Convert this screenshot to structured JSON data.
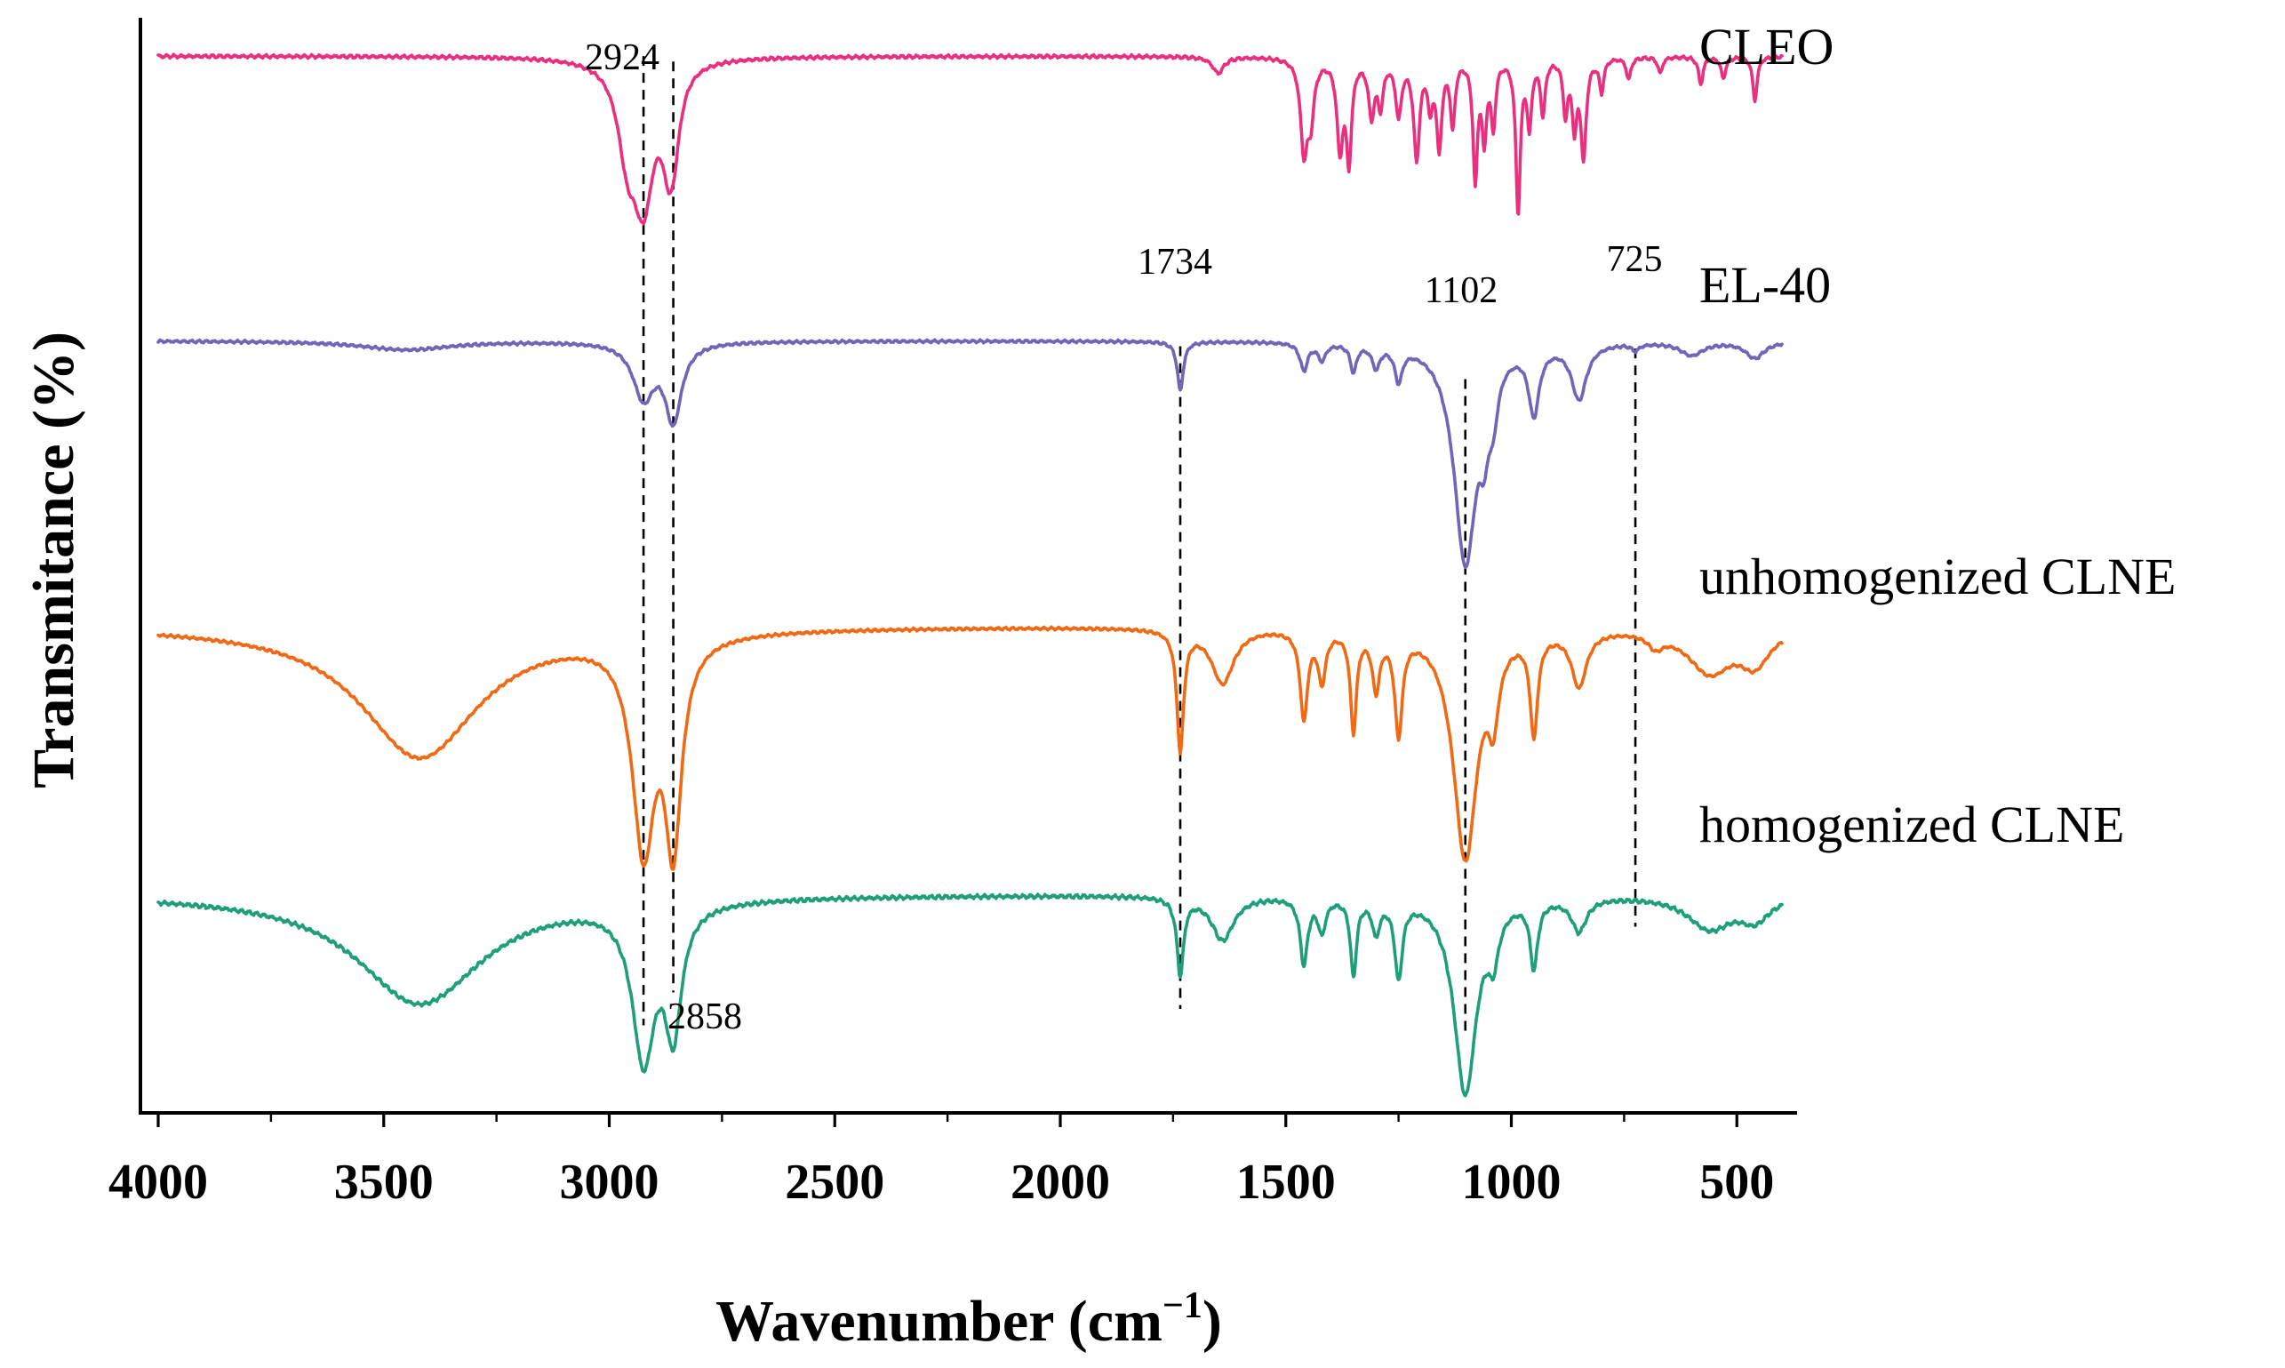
{
  "chart_data": {
    "type": "line",
    "title": "",
    "xlabel": "Wavenumber (cm",
    "xlabel_sup": "−1",
    "xlabel_close": ")",
    "ylabel": "Transmitance (%)",
    "xlim": [
      4000,
      400
    ],
    "x_reversed": true,
    "x_ticks": [
      "4000",
      "3500",
      "3000",
      "2500",
      "2000",
      "1500",
      "1000",
      "500"
    ],
    "x_tick_values": [
      4000,
      3500,
      3000,
      2500,
      2000,
      1500,
      1000,
      500
    ],
    "x_minor_step": 250,
    "y_ticks": [],
    "grid": false,
    "legend": "right",
    "series": [
      {
        "name": "CLEO",
        "color": "#E8307F",
        "baseline": 0.035,
        "slope": 0.0,
        "noise": 0.0018,
        "peaks": [
          [
            2960,
            0.07,
            25
          ],
          [
            2924,
            0.12,
            28
          ],
          [
            2870,
            0.05,
            18
          ],
          [
            2858,
            0.06,
            18
          ],
          [
            1650,
            0.015,
            15
          ],
          [
            1460,
            0.08,
            9
          ],
          [
            1445,
            0.05,
            9
          ],
          [
            1380,
            0.08,
            8
          ],
          [
            1360,
            0.09,
            7
          ],
          [
            1310,
            0.05,
            8
          ],
          [
            1290,
            0.04,
            7
          ],
          [
            1250,
            0.05,
            8
          ],
          [
            1210,
            0.09,
            8
          ],
          [
            1180,
            0.04,
            6
          ],
          [
            1160,
            0.08,
            7
          ],
          [
            1130,
            0.06,
            6
          ],
          [
            1080,
            0.11,
            6
          ],
          [
            1060,
            0.07,
            6
          ],
          [
            1040,
            0.06,
            6
          ],
          [
            985,
            0.14,
            6
          ],
          [
            960,
            0.06,
            6
          ],
          [
            930,
            0.05,
            6
          ],
          [
            880,
            0.05,
            6
          ],
          [
            860,
            0.06,
            6
          ],
          [
            840,
            0.09,
            7
          ],
          [
            800,
            0.03,
            6
          ],
          [
            740,
            0.02,
            6
          ],
          [
            670,
            0.015,
            6
          ],
          [
            580,
            0.025,
            6
          ],
          [
            530,
            0.02,
            6
          ],
          [
            460,
            0.04,
            6
          ]
        ]
      },
      {
        "name": "EL-40",
        "color": "#7464B8",
        "baseline": 0.295,
        "slope": 0.0,
        "noise": 0.0015,
        "peaks": [
          [
            3450,
            0.008,
            120
          ],
          [
            2924,
            0.05,
            28
          ],
          [
            2858,
            0.07,
            22
          ],
          [
            1734,
            0.045,
            8
          ],
          [
            1460,
            0.025,
            10
          ],
          [
            1420,
            0.015,
            10
          ],
          [
            1350,
            0.025,
            8
          ],
          [
            1300,
            0.02,
            10
          ],
          [
            1250,
            0.03,
            10
          ],
          [
            1102,
            0.2,
            30
          ],
          [
            1060,
            0.05,
            12
          ],
          [
            1040,
            0.04,
            12
          ],
          [
            950,
            0.06,
            14
          ],
          [
            850,
            0.05,
            20
          ],
          [
            725,
            0.006,
            10
          ],
          [
            600,
            0.012,
            30
          ],
          [
            460,
            0.015,
            25
          ]
        ]
      },
      {
        "name": "unhomogenized CLNE",
        "color": "#F06A16",
        "baseline": 0.555,
        "slope": 0.0,
        "noise": 0.0015,
        "peaks": [
          [
            3420,
            0.12,
            160
          ],
          [
            2924,
            0.19,
            30
          ],
          [
            2858,
            0.18,
            22
          ],
          [
            1734,
            0.11,
            9
          ],
          [
            1640,
            0.05,
            30
          ],
          [
            1460,
            0.08,
            10
          ],
          [
            1420,
            0.045,
            10
          ],
          [
            1350,
            0.09,
            8
          ],
          [
            1300,
            0.05,
            10
          ],
          [
            1250,
            0.09,
            10
          ],
          [
            1102,
            0.21,
            32
          ],
          [
            1040,
            0.06,
            14
          ],
          [
            950,
            0.09,
            10
          ],
          [
            850,
            0.05,
            20
          ],
          [
            680,
            0.012,
            20
          ],
          [
            560,
            0.04,
            60
          ],
          [
            460,
            0.03,
            40
          ]
        ]
      },
      {
        "name": "homogenized CLNE",
        "color": "#1E9E79",
        "baseline": 0.8,
        "slope": 0.0,
        "noise": 0.0022,
        "peaks": [
          [
            3420,
            0.1,
            170
          ],
          [
            2924,
            0.14,
            30
          ],
          [
            2858,
            0.11,
            22
          ],
          [
            1734,
            0.07,
            9
          ],
          [
            1640,
            0.04,
            30
          ],
          [
            1460,
            0.06,
            10
          ],
          [
            1420,
            0.03,
            10
          ],
          [
            1350,
            0.07,
            8
          ],
          [
            1300,
            0.03,
            10
          ],
          [
            1250,
            0.07,
            10
          ],
          [
            1102,
            0.18,
            30
          ],
          [
            1040,
            0.04,
            14
          ],
          [
            950,
            0.06,
            10
          ],
          [
            850,
            0.03,
            20
          ],
          [
            560,
            0.03,
            60
          ],
          [
            460,
            0.02,
            40
          ]
        ]
      }
    ],
    "annotations": [
      {
        "text": "2924",
        "wavenumber": 2924
      },
      {
        "text": "2858",
        "wavenumber": 2858
      },
      {
        "text": "1734",
        "wavenumber": 1734
      },
      {
        "text": "1102",
        "wavenumber": 1102
      },
      {
        "text": "725",
        "wavenumber": 725
      }
    ]
  }
}
